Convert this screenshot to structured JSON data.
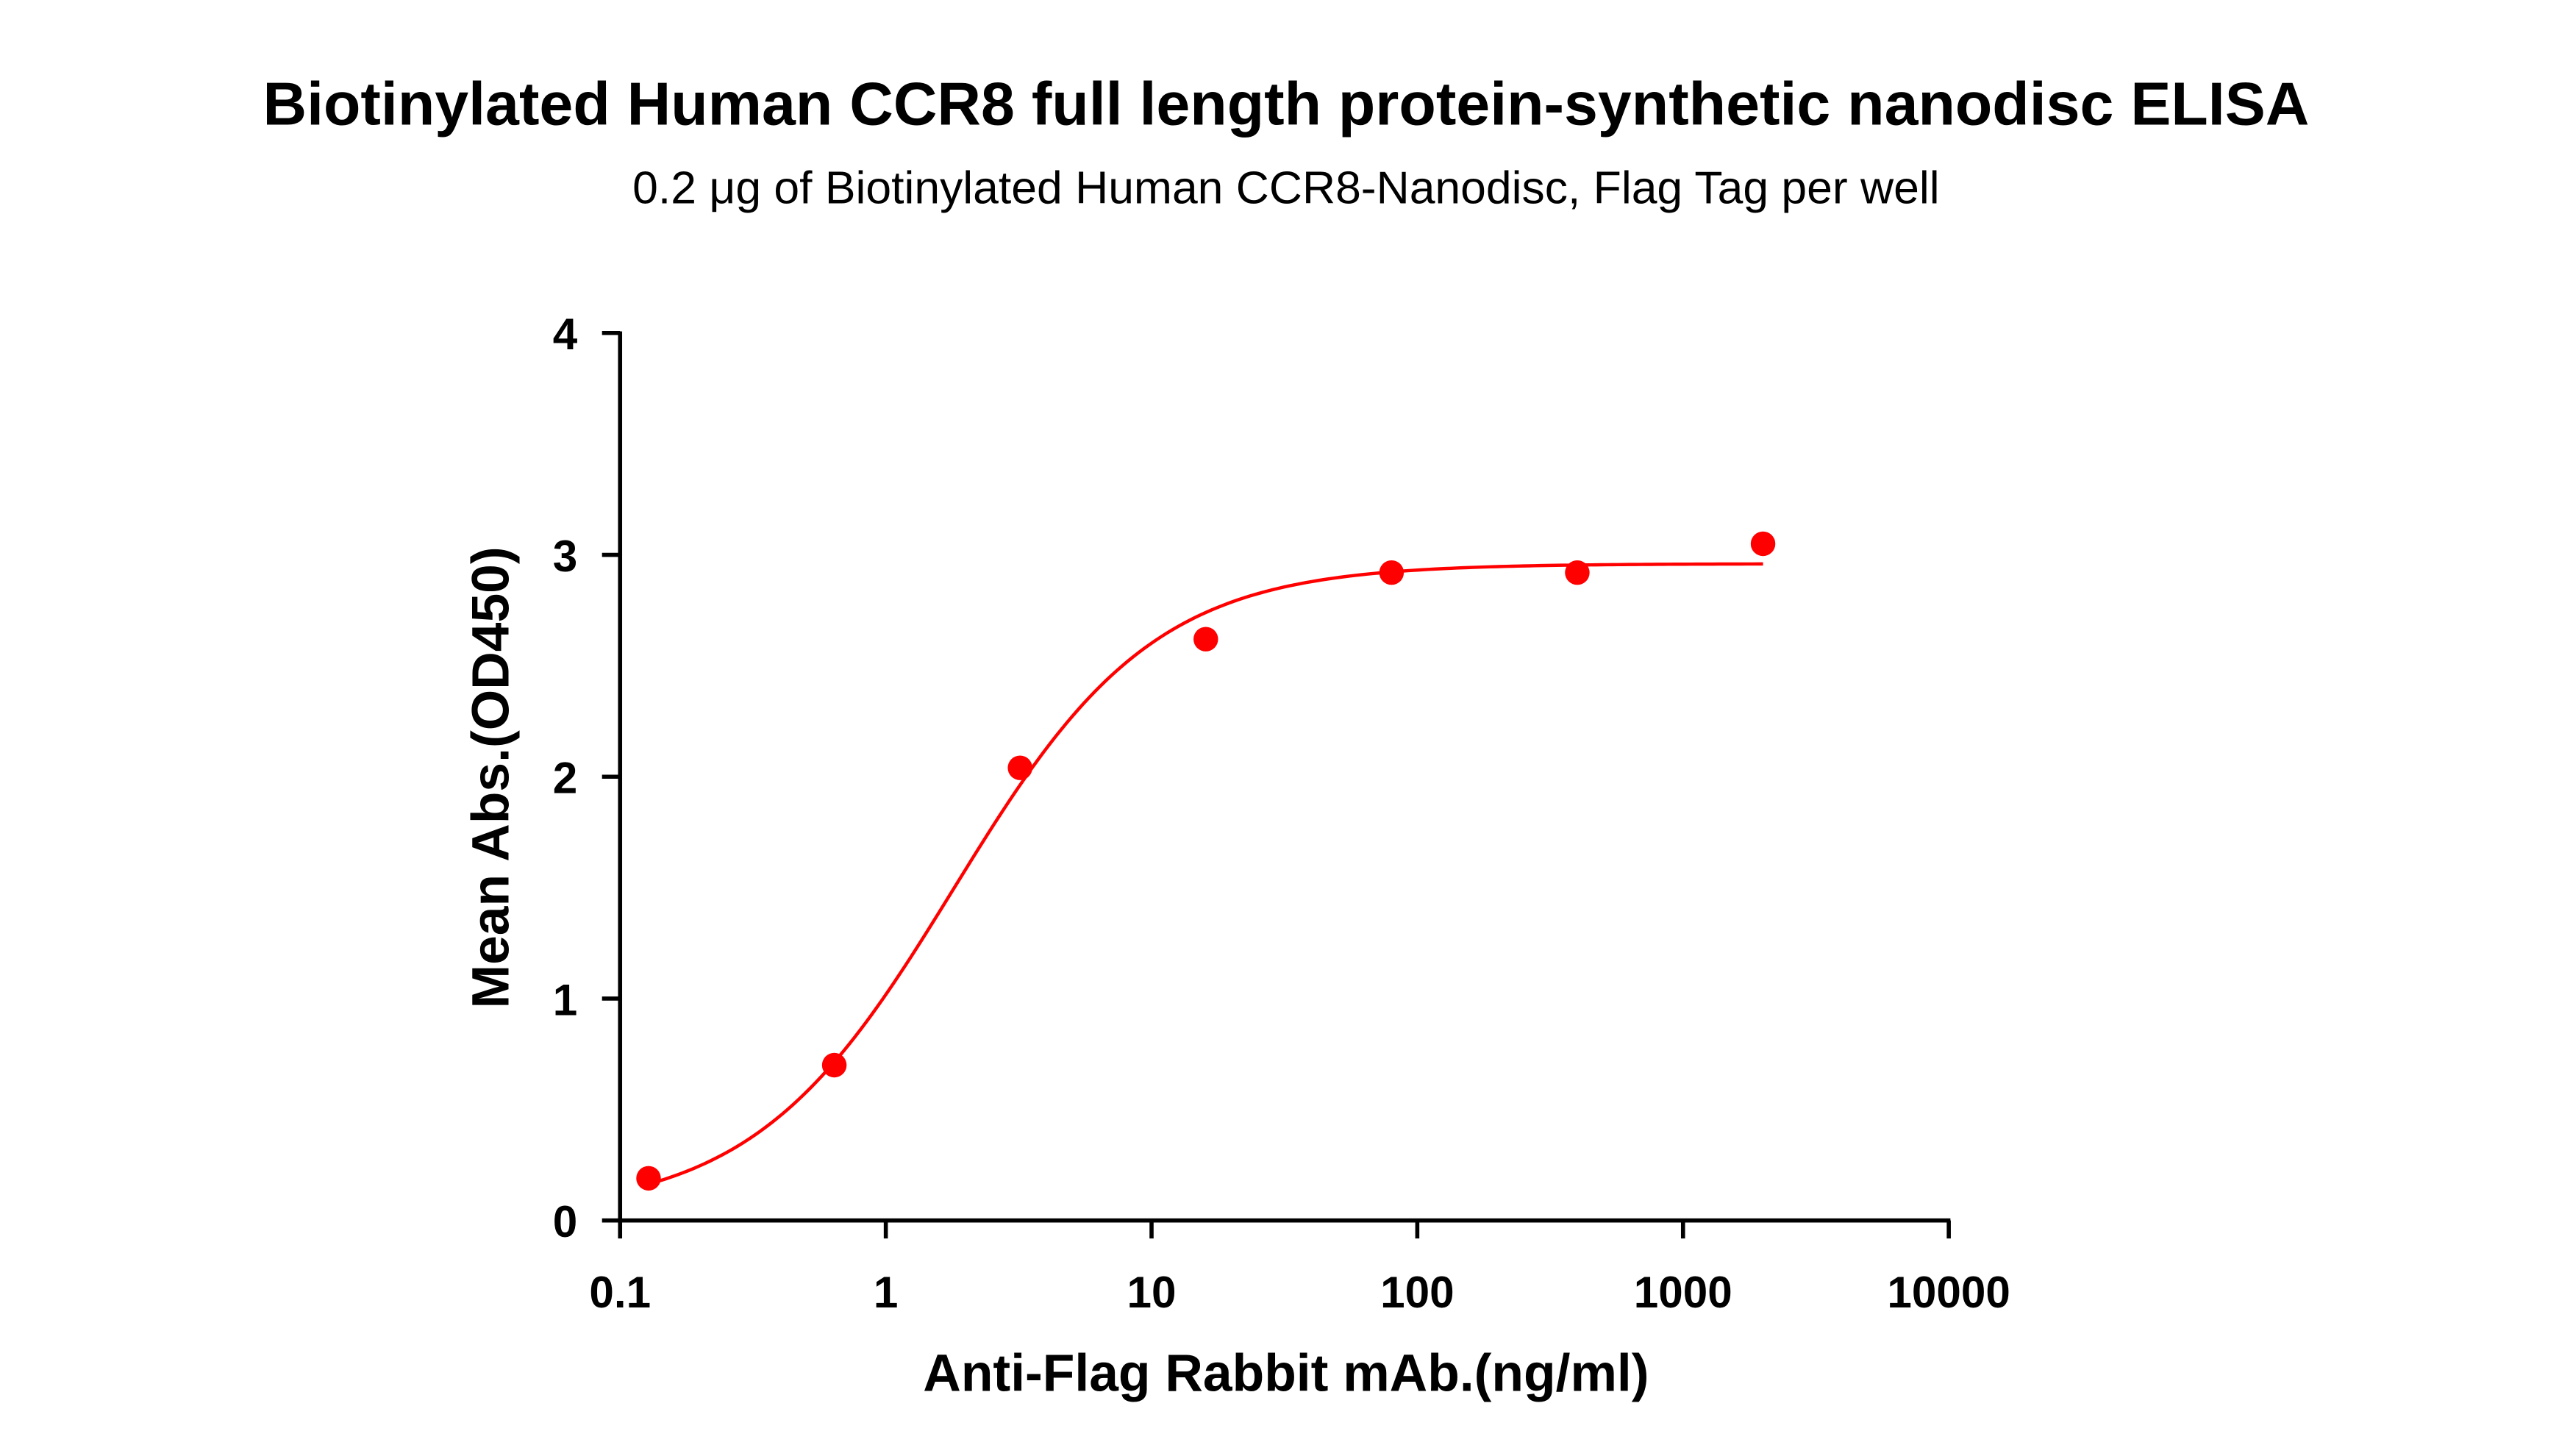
{
  "chart_data": {
    "type": "scatter",
    "title": "Biotinylated Human CCR8 full length protein-synthetic nanodisc ELISA",
    "subtitle": "0.2 μg of Biotinylated Human CCR8-Nanodisc, Flag Tag per well",
    "xlabel": "Anti-Flag Rabbit mAb.(ng/ml)",
    "ylabel": "Mean Abs.(OD450)",
    "xscale": "log",
    "xlim": [
      0.1,
      10000
    ],
    "ylim": [
      0,
      4
    ],
    "xticks": [
      "0.1",
      "1",
      "10",
      "100",
      "1000",
      "10000"
    ],
    "yticks": [
      "0",
      "1",
      "2",
      "3",
      "4"
    ],
    "grid": false,
    "color": "#ff0000",
    "fit_curve": "sigmoidal",
    "x": [
      0.128,
      0.64,
      3.2,
      16,
      80,
      400,
      2000
    ],
    "y": [
      0.19,
      0.7,
      2.04,
      2.62,
      2.92,
      2.92,
      3.05
    ]
  }
}
